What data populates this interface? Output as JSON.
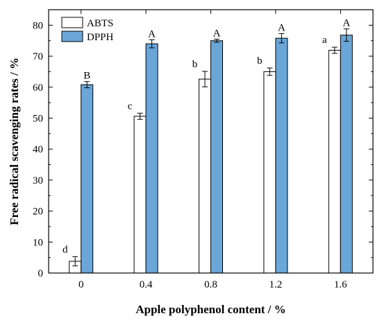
{
  "chart_data": {
    "type": "bar",
    "title": "",
    "xlabel": "Apple polyphenol content / %",
    "ylabel": "Free radical scavenging rates / %",
    "categories": [
      "0",
      "0.4",
      "0.8",
      "1.2",
      "1.6"
    ],
    "ylim": [
      0,
      85
    ],
    "yticks": [
      0,
      10,
      20,
      30,
      40,
      50,
      60,
      70,
      80
    ],
    "grid": false,
    "legend_position": "top-left",
    "series": [
      {
        "name": "ABTS",
        "color": "#ffffff",
        "values": [
          3.8,
          50.6,
          62.6,
          65.0,
          71.9
        ],
        "errors": [
          1.5,
          1.0,
          2.5,
          1.2,
          1.0
        ],
        "labels": [
          "d",
          "c",
          "b",
          "b",
          "a"
        ]
      },
      {
        "name": "DPPH",
        "color": "#6aa6d8",
        "values": [
          60.8,
          74.0,
          75.0,
          75.8,
          76.8
        ],
        "errors": [
          1.0,
          1.3,
          0.5,
          1.5,
          2.0
        ],
        "labels": [
          "B",
          "A",
          "A",
          "A",
          "A"
        ]
      }
    ]
  }
}
